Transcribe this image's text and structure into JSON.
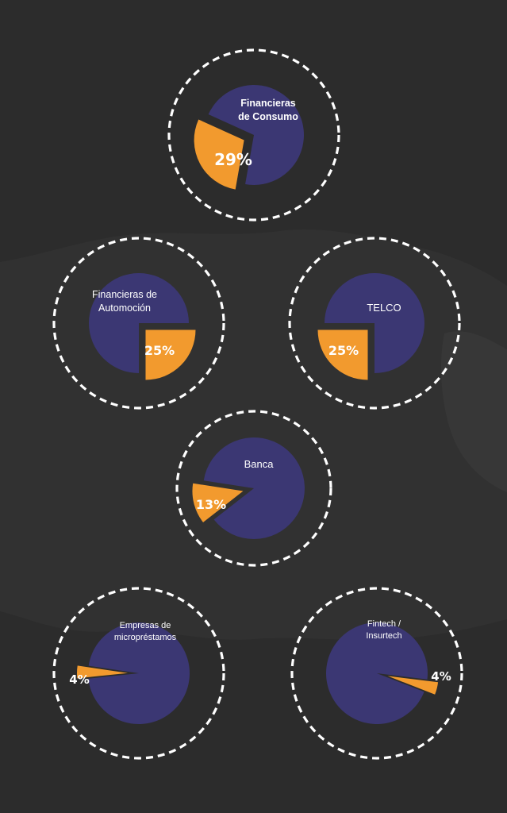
{
  "chart_data": {
    "type": "pie",
    "series_color_main": "#3b3773",
    "series_color_highlight": "#f29a2e",
    "background_color": "#2c2c2c",
    "dashed_ring_color": "#ffffff",
    "charts": [
      {
        "label": [
          "Financieras",
          "de Consumo"
        ],
        "percent_label": "29%",
        "highlight_value": 29,
        "rest_value": 71
      },
      {
        "label": [
          "Financieras de",
          "Automoción"
        ],
        "percent_label": "25%",
        "highlight_value": 25,
        "rest_value": 75
      },
      {
        "label": [
          "TELCO"
        ],
        "percent_label": "25%",
        "highlight_value": 25,
        "rest_value": 75
      },
      {
        "label": [
          "Banca"
        ],
        "percent_label": "13%",
        "highlight_value": 13,
        "rest_value": 87
      },
      {
        "label": [
          "Empresas de",
          "micropréstamos"
        ],
        "percent_label": "4%",
        "highlight_value": 4,
        "rest_value": 96
      },
      {
        "label": [
          "Fintech /",
          "Insurtech"
        ],
        "percent_label": "4%",
        "highlight_value": 4,
        "rest_value": 96
      }
    ]
  }
}
